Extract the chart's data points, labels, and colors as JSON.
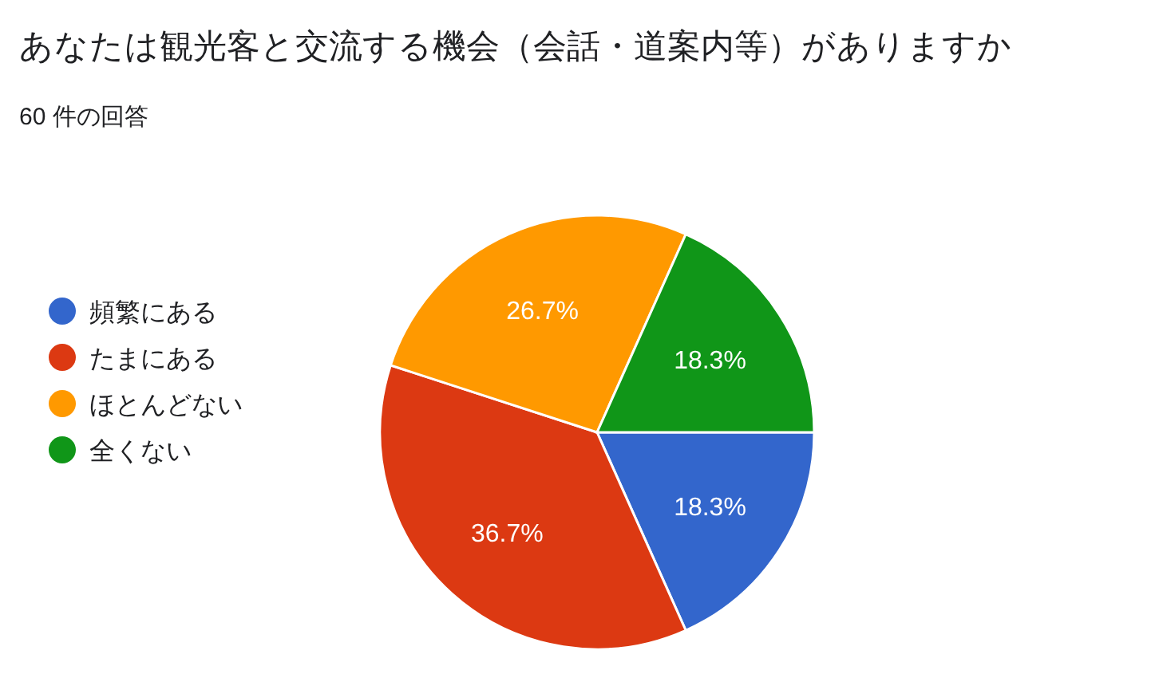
{
  "chart_data": {
    "type": "pie",
    "title": "あなたは観光客と交流する機会（会話・道案内等）がありますか",
    "subtitle": "60 件の回答",
    "categories": [
      "頻繁にある",
      "たまにある",
      "ほとんどない",
      "全くない"
    ],
    "values": [
      18.3,
      36.7,
      26.7,
      18.3
    ],
    "colors": [
      "#3366cc",
      "#dc3912",
      "#ff9900",
      "#109618"
    ],
    "value_labels": [
      "18.3%",
      "36.7%",
      "26.7%",
      "18.3%"
    ],
    "legend": "left"
  }
}
